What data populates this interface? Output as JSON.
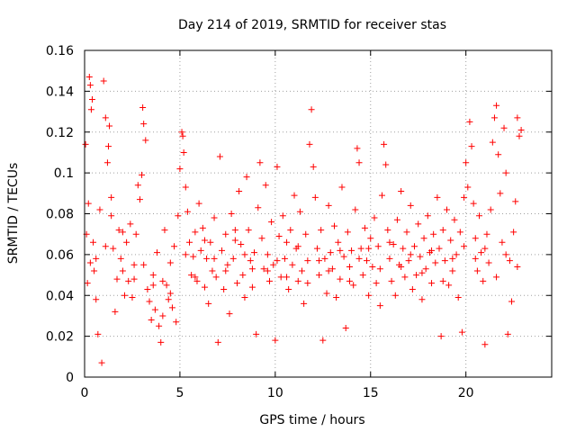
{
  "chart_data": {
    "type": "scatter",
    "title": "Day 214 of 2019, SRMTID for receiver stas",
    "xlabel": "GPS time / hours",
    "ylabel": "SRMTID / TECUs",
    "xlim": [
      0,
      24.5
    ],
    "ylim": [
      0,
      0.16
    ],
    "xticks": [
      0,
      5,
      10,
      15,
      20
    ],
    "xtick_labels": [
      "0",
      "5",
      "10",
      "15",
      "20"
    ],
    "yticks": [
      0,
      0.02,
      0.04,
      0.06,
      0.08,
      0.1,
      0.12,
      0.14,
      0.16
    ],
    "ytick_labels": [
      "0",
      "0.02",
      "0.04",
      "0.06",
      "0.08",
      "0.1",
      "0.12",
      "0.14",
      "0.16"
    ],
    "grid": true,
    "marker": "+",
    "color": "#ff0000",
    "series": [
      {
        "name": "stas",
        "points": [
          [
            0.05,
            0.114
          ],
          [
            0.1,
            0.07
          ],
          [
            0.15,
            0.046
          ],
          [
            0.2,
            0.085
          ],
          [
            0.25,
            0.147
          ],
          [
            0.3,
            0.143
          ],
          [
            0.35,
            0.131
          ],
          [
            0.4,
            0.136
          ],
          [
            0.45,
            0.066
          ],
          [
            0.5,
            0.052
          ],
          [
            0.6,
            0.058
          ],
          [
            0.7,
            0.021
          ],
          [
            0.8,
            0.082
          ],
          [
            0.9,
            0.007
          ],
          [
            1.0,
            0.145
          ],
          [
            1.1,
            0.127
          ],
          [
            1.2,
            0.105
          ],
          [
            1.25,
            0.113
          ],
          [
            1.3,
            0.123
          ],
          [
            1.4,
            0.088
          ],
          [
            1.5,
            0.063
          ],
          [
            1.6,
            0.032
          ],
          [
            1.7,
            0.048
          ],
          [
            1.8,
            0.072
          ],
          [
            1.9,
            0.058
          ],
          [
            2.0,
            0.052
          ],
          [
            2.1,
            0.04
          ],
          [
            2.2,
            0.066
          ],
          [
            2.3,
            0.047
          ],
          [
            2.4,
            0.075
          ],
          [
            2.5,
            0.039
          ],
          [
            2.6,
            0.055
          ],
          [
            2.7,
            0.07
          ],
          [
            2.8,
            0.094
          ],
          [
            2.9,
            0.087
          ],
          [
            3.0,
            0.099
          ],
          [
            3.05,
            0.132
          ],
          [
            3.1,
            0.124
          ],
          [
            3.2,
            0.116
          ],
          [
            3.3,
            0.043
          ],
          [
            3.4,
            0.037
          ],
          [
            3.5,
            0.028
          ],
          [
            3.6,
            0.05
          ],
          [
            3.7,
            0.033
          ],
          [
            3.8,
            0.061
          ],
          [
            3.9,
            0.025
          ],
          [
            4.0,
            0.017
          ],
          [
            4.1,
            0.03
          ],
          [
            4.2,
            0.072
          ],
          [
            4.3,
            0.045
          ],
          [
            4.4,
            0.038
          ],
          [
            4.5,
            0.056
          ],
          [
            4.6,
            0.034
          ],
          [
            4.7,
            0.064
          ],
          [
            4.8,
            0.027
          ],
          [
            4.9,
            0.079
          ],
          [
            5.0,
            0.102
          ],
          [
            5.1,
            0.12
          ],
          [
            5.15,
            0.118
          ],
          [
            5.2,
            0.11
          ],
          [
            5.3,
            0.093
          ],
          [
            5.4,
            0.081
          ],
          [
            5.5,
            0.066
          ],
          [
            5.6,
            0.05
          ],
          [
            5.7,
            0.059
          ],
          [
            5.8,
            0.071
          ],
          [
            5.9,
            0.047
          ],
          [
            6.0,
            0.085
          ],
          [
            6.1,
            0.062
          ],
          [
            6.2,
            0.073
          ],
          [
            6.3,
            0.044
          ],
          [
            6.4,
            0.058
          ],
          [
            6.5,
            0.036
          ],
          [
            6.6,
            0.066
          ],
          [
            6.7,
            0.052
          ],
          [
            6.8,
            0.078
          ],
          [
            6.9,
            0.049
          ],
          [
            7.0,
            0.017
          ],
          [
            7.1,
            0.108
          ],
          [
            7.2,
            0.062
          ],
          [
            7.3,
            0.043
          ],
          [
            7.4,
            0.07
          ],
          [
            7.5,
            0.055
          ],
          [
            7.6,
            0.031
          ],
          [
            7.7,
            0.08
          ],
          [
            7.8,
            0.058
          ],
          [
            7.9,
            0.067
          ],
          [
            8.0,
            0.046
          ],
          [
            8.1,
            0.091
          ],
          [
            8.2,
            0.065
          ],
          [
            8.3,
            0.05
          ],
          [
            8.4,
            0.039
          ],
          [
            8.5,
            0.098
          ],
          [
            8.6,
            0.072
          ],
          [
            8.7,
            0.057
          ],
          [
            8.8,
            0.044
          ],
          [
            8.9,
            0.061
          ],
          [
            9.0,
            0.021
          ],
          [
            9.1,
            0.083
          ],
          [
            9.2,
            0.105
          ],
          [
            9.3,
            0.068
          ],
          [
            9.4,
            0.053
          ],
          [
            9.5,
            0.094
          ],
          [
            9.6,
            0.06
          ],
          [
            9.7,
            0.047
          ],
          [
            9.8,
            0.076
          ],
          [
            9.9,
            0.055
          ],
          [
            10.0,
            0.018
          ],
          [
            10.1,
            0.103
          ],
          [
            10.2,
            0.069
          ],
          [
            10.3,
            0.049
          ],
          [
            10.4,
            0.079
          ],
          [
            10.5,
            0.058
          ],
          [
            10.6,
            0.066
          ],
          [
            10.7,
            0.043
          ],
          [
            10.8,
            0.072
          ],
          [
            10.9,
            0.055
          ],
          [
            11.0,
            0.089
          ],
          [
            11.1,
            0.063
          ],
          [
            11.2,
            0.047
          ],
          [
            11.3,
            0.081
          ],
          [
            11.4,
            0.052
          ],
          [
            11.5,
            0.036
          ],
          [
            11.6,
            0.07
          ],
          [
            11.7,
            0.057
          ],
          [
            11.8,
            0.114
          ],
          [
            11.9,
            0.131
          ],
          [
            12.0,
            0.103
          ],
          [
            12.1,
            0.088
          ],
          [
            12.2,
            0.063
          ],
          [
            12.3,
            0.05
          ],
          [
            12.4,
            0.072
          ],
          [
            12.5,
            0.018
          ],
          [
            12.6,
            0.058
          ],
          [
            12.7,
            0.041
          ],
          [
            12.8,
            0.084
          ],
          [
            12.9,
            0.061
          ],
          [
            13.0,
            0.053
          ],
          [
            13.1,
            0.074
          ],
          [
            13.2,
            0.039
          ],
          [
            13.3,
            0.066
          ],
          [
            13.4,
            0.048
          ],
          [
            13.5,
            0.093
          ],
          [
            13.6,
            0.059
          ],
          [
            13.7,
            0.024
          ],
          [
            13.8,
            0.071
          ],
          [
            13.9,
            0.054
          ],
          [
            14.0,
            0.062
          ],
          [
            14.1,
            0.045
          ],
          [
            14.2,
            0.082
          ],
          [
            14.3,
            0.112
          ],
          [
            14.4,
            0.105
          ],
          [
            14.5,
            0.063
          ],
          [
            14.6,
            0.05
          ],
          [
            14.7,
            0.073
          ],
          [
            14.8,
            0.057
          ],
          [
            14.9,
            0.04
          ],
          [
            15.0,
            0.068
          ],
          [
            15.1,
            0.054
          ],
          [
            15.2,
            0.078
          ],
          [
            15.3,
            0.046
          ],
          [
            15.4,
            0.064
          ],
          [
            15.5,
            0.035
          ],
          [
            15.6,
            0.089
          ],
          [
            15.7,
            0.114
          ],
          [
            15.8,
            0.104
          ],
          [
            15.9,
            0.072
          ],
          [
            16.0,
            0.058
          ],
          [
            16.1,
            0.047
          ],
          [
            16.2,
            0.065
          ],
          [
            16.3,
            0.04
          ],
          [
            16.4,
            0.077
          ],
          [
            16.5,
            0.055
          ],
          [
            16.6,
            0.091
          ],
          [
            16.7,
            0.063
          ],
          [
            16.8,
            0.049
          ],
          [
            16.9,
            0.071
          ],
          [
            17.0,
            0.057
          ],
          [
            17.1,
            0.084
          ],
          [
            17.2,
            0.043
          ],
          [
            17.3,
            0.064
          ],
          [
            17.4,
            0.05
          ],
          [
            17.5,
            0.075
          ],
          [
            17.6,
            0.059
          ],
          [
            17.7,
            0.038
          ],
          [
            17.8,
            0.068
          ],
          [
            17.9,
            0.053
          ],
          [
            18.0,
            0.079
          ],
          [
            18.1,
            0.061
          ],
          [
            18.2,
            0.046
          ],
          [
            18.3,
            0.07
          ],
          [
            18.4,
            0.056
          ],
          [
            18.5,
            0.088
          ],
          [
            18.6,
            0.063
          ],
          [
            18.7,
            0.02
          ],
          [
            18.8,
            0.072
          ],
          [
            18.9,
            0.057
          ],
          [
            19.0,
            0.082
          ],
          [
            19.1,
            0.045
          ],
          [
            19.2,
            0.067
          ],
          [
            19.3,
            0.052
          ],
          [
            19.4,
            0.077
          ],
          [
            19.5,
            0.06
          ],
          [
            19.6,
            0.039
          ],
          [
            19.7,
            0.071
          ],
          [
            19.8,
            0.022
          ],
          [
            19.9,
            0.088
          ],
          [
            20.0,
            0.105
          ],
          [
            20.1,
            0.093
          ],
          [
            20.2,
            0.125
          ],
          [
            20.3,
            0.113
          ],
          [
            20.4,
            0.085
          ],
          [
            20.5,
            0.068
          ],
          [
            20.6,
            0.052
          ],
          [
            20.7,
            0.079
          ],
          [
            20.8,
            0.061
          ],
          [
            20.9,
            0.047
          ],
          [
            21.0,
            0.016
          ],
          [
            21.1,
            0.07
          ],
          [
            21.2,
            0.056
          ],
          [
            21.3,
            0.082
          ],
          [
            21.4,
            0.115
          ],
          [
            21.5,
            0.127
          ],
          [
            21.6,
            0.133
          ],
          [
            21.7,
            0.109
          ],
          [
            21.8,
            0.09
          ],
          [
            21.9,
            0.066
          ],
          [
            22.0,
            0.122
          ],
          [
            22.1,
            0.1
          ],
          [
            22.2,
            0.021
          ],
          [
            22.3,
            0.057
          ],
          [
            22.4,
            0.037
          ],
          [
            22.5,
            0.071
          ],
          [
            22.6,
            0.086
          ],
          [
            22.7,
            0.127
          ],
          [
            22.8,
            0.118
          ],
          [
            22.9,
            0.121
          ],
          [
            0.3,
            0.056
          ],
          [
            0.6,
            0.038
          ],
          [
            1.1,
            0.064
          ],
          [
            1.4,
            0.079
          ],
          [
            2.0,
            0.071
          ],
          [
            2.6,
            0.048
          ],
          [
            3.1,
            0.055
          ],
          [
            3.6,
            0.045
          ],
          [
            4.1,
            0.047
          ],
          [
            4.5,
            0.041
          ],
          [
            5.3,
            0.06
          ],
          [
            5.8,
            0.049
          ],
          [
            6.3,
            0.067
          ],
          [
            6.8,
            0.058
          ],
          [
            7.4,
            0.052
          ],
          [
            7.9,
            0.072
          ],
          [
            8.4,
            0.06
          ],
          [
            8.8,
            0.053
          ],
          [
            9.6,
            0.052
          ],
          [
            10.1,
            0.057
          ],
          [
            10.6,
            0.049
          ],
          [
            11.2,
            0.064
          ],
          [
            11.7,
            0.046
          ],
          [
            12.3,
            0.057
          ],
          [
            12.8,
            0.052
          ],
          [
            13.4,
            0.062
          ],
          [
            13.9,
            0.047
          ],
          [
            14.4,
            0.058
          ],
          [
            14.9,
            0.063
          ],
          [
            15.5,
            0.053
          ],
          [
            16.0,
            0.066
          ],
          [
            16.6,
            0.054
          ],
          [
            17.1,
            0.06
          ],
          [
            17.7,
            0.051
          ],
          [
            18.2,
            0.062
          ],
          [
            18.8,
            0.047
          ],
          [
            19.3,
            0.058
          ],
          [
            19.9,
            0.064
          ],
          [
            20.5,
            0.058
          ],
          [
            21.0,
            0.063
          ],
          [
            21.6,
            0.049
          ],
          [
            22.1,
            0.06
          ],
          [
            22.7,
            0.054
          ]
        ]
      }
    ]
  }
}
